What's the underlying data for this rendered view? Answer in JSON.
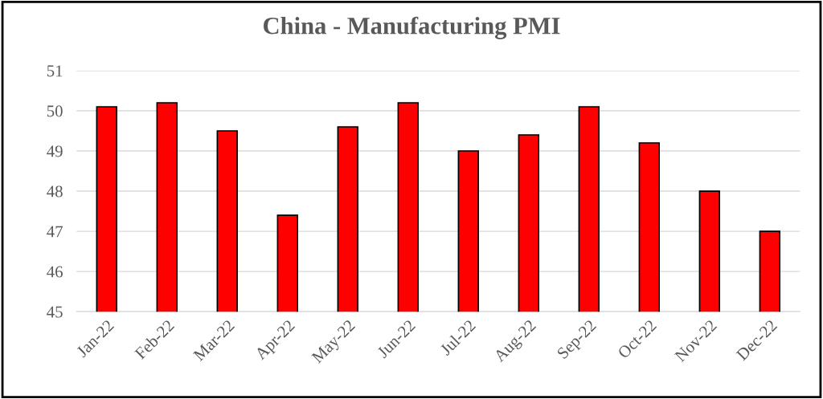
{
  "chart_data": {
    "type": "bar",
    "title": "China - Manufacturing PMI",
    "categories": [
      "Jan-22",
      "Feb-22",
      "Mar-22",
      "Apr-22",
      "May-22",
      "Jun-22",
      "Jul-22",
      "Aug-22",
      "Sep-22",
      "Oct-22",
      "Nov-22",
      "Dec-22"
    ],
    "values": [
      50.1,
      50.2,
      49.5,
      47.4,
      49.6,
      50.2,
      49.0,
      49.4,
      50.1,
      49.2,
      48.0,
      47.0
    ],
    "color": "#ff0000",
    "ylim": [
      45,
      51
    ],
    "yticks": [
      45,
      46,
      47,
      48,
      49,
      50,
      51
    ],
    "grid": "y"
  }
}
